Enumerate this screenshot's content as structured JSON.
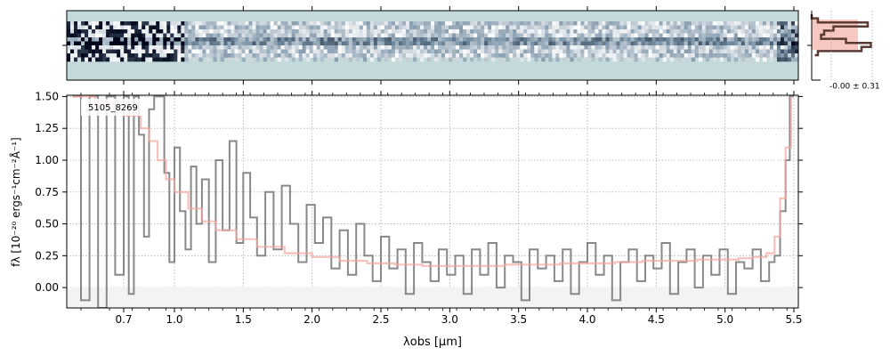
{
  "chart_data": [
    {
      "panel": "spectrum-2d",
      "type": "heatmap",
      "colormap": "bone_r-like (white → slate blue → black)",
      "background_color": "#c4dada",
      "description_of_values": "noisy 2D trace centered near row 4 of 10",
      "rows": 10
    },
    {
      "panel": "profile",
      "type": "line",
      "tick_label": "-0.00 ± 0.31",
      "profile_color": "#5a3a32",
      "band_color": "#f3b5ac",
      "profile": [
        0.0,
        0.1,
        0.9,
        0.35,
        0.2,
        0.15,
        0.55,
        0.95,
        0.8,
        0.1,
        0.05
      ]
    },
    {
      "panel": "spectrum-1d",
      "type": "line",
      "label": "5105_8269",
      "xlabel": "λobs [μm]",
      "ylabel": "fλ [10⁻²⁰ ergs⁻¹cm⁻²Å⁻¹]",
      "xtick_labels": [
        "0.7",
        "1.0",
        "1.5",
        "2.0",
        "2.5",
        "3.0",
        "3.5",
        "4.0",
        "4.5",
        "5.0",
        "5.5"
      ],
      "xticks": [
        0.7,
        1.0,
        1.5,
        2.0,
        2.5,
        3.0,
        3.5,
        4.0,
        4.5,
        5.0,
        5.5
      ],
      "ytick_labels": [
        "0.00",
        "0.25",
        "0.50",
        "0.75",
        "1.00",
        "1.25",
        "1.50"
      ],
      "yticks": [
        0.0,
        0.25,
        0.5,
        0.75,
        1.0,
        1.25,
        1.5
      ],
      "xlim": [
        0.5,
        5.52
      ],
      "ylim": [
        -0.16,
        1.51
      ],
      "grid": true,
      "data_color": "#888888",
      "model_color": "#f3a6a0",
      "series": [
        {
          "style": "steps",
          "x": [
            0.52,
            0.55,
            0.58,
            0.61,
            0.64,
            0.67,
            0.7,
            0.73,
            0.76,
            0.79,
            0.82,
            0.85,
            0.88,
            0.91,
            0.94,
            0.97,
            1.0,
            1.04,
            1.08,
            1.12,
            1.16,
            1.2,
            1.25,
            1.3,
            1.35,
            1.4,
            1.45,
            1.5,
            1.55,
            1.6,
            1.66,
            1.72,
            1.78,
            1.84,
            1.9,
            1.96,
            2.02,
            2.08,
            2.14,
            2.2,
            2.26,
            2.32,
            2.38,
            2.44,
            2.5,
            2.56,
            2.62,
            2.68,
            2.74,
            2.8,
            2.86,
            2.92,
            2.98,
            3.04,
            3.1,
            3.16,
            3.22,
            3.28,
            3.34,
            3.4,
            3.46,
            3.52,
            3.58,
            3.64,
            3.7,
            3.76,
            3.82,
            3.88,
            3.94,
            4.0,
            4.06,
            4.12,
            4.18,
            4.24,
            4.3,
            4.36,
            4.42,
            4.48,
            4.54,
            4.6,
            4.66,
            4.72,
            4.78,
            4.84,
            4.9,
            4.96,
            5.02,
            5.08,
            5.14,
            5.2,
            5.26,
            5.32,
            5.36,
            5.4,
            5.44,
            5.47,
            5.5
          ],
          "y": [
            1.5,
            -0.1,
            1.5,
            -0.16,
            1.5,
            0.1,
            1.5,
            -0.05,
            1.5,
            1.2,
            0.4,
            1.4,
            1.5,
            1.5,
            0.9,
            0.2,
            1.1,
            0.6,
            0.3,
            0.95,
            0.5,
            0.85,
            0.2,
            1.0,
            0.45,
            1.15,
            0.35,
            0.9,
            0.55,
            0.25,
            0.75,
            0.3,
            0.8,
            0.5,
            0.2,
            0.65,
            0.35,
            0.55,
            0.15,
            0.45,
            0.1,
            0.5,
            0.25,
            0.05,
            0.4,
            0.15,
            0.3,
            -0.05,
            0.35,
            0.2,
            0.05,
            0.3,
            0.1,
            0.25,
            -0.05,
            0.3,
            0.1,
            0.35,
            0.0,
            0.25,
            0.2,
            -0.1,
            0.3,
            0.15,
            0.25,
            0.05,
            0.3,
            -0.05,
            0.2,
            0.35,
            0.1,
            0.25,
            -0.1,
            0.2,
            0.3,
            0.05,
            0.25,
            0.15,
            0.35,
            -0.05,
            0.2,
            0.3,
            0.0,
            0.25,
            0.1,
            0.3,
            -0.05,
            0.2,
            0.15,
            0.3,
            0.05,
            0.2,
            0.25,
            0.6,
            1.0,
            1.5,
            1.5
          ]
        },
        {
          "style": "steps",
          "x": [
            0.52,
            0.6,
            0.7,
            0.8,
            0.85,
            0.9,
            0.95,
            1.0,
            1.1,
            1.2,
            1.3,
            1.45,
            1.6,
            1.8,
            2.0,
            2.2,
            2.4,
            2.6,
            2.8,
            3.0,
            3.2,
            3.4,
            3.6,
            3.8,
            4.0,
            4.2,
            4.4,
            4.6,
            4.8,
            5.0,
            5.1,
            5.2,
            5.3,
            5.36,
            5.4,
            5.44,
            5.48
          ],
          "y": [
            1.5,
            1.45,
            1.35,
            1.25,
            1.15,
            1.0,
            0.85,
            0.75,
            0.62,
            0.52,
            0.45,
            0.38,
            0.32,
            0.27,
            0.24,
            0.21,
            0.19,
            0.18,
            0.17,
            0.17,
            0.17,
            0.18,
            0.18,
            0.19,
            0.19,
            0.2,
            0.21,
            0.21,
            0.22,
            0.22,
            0.23,
            0.24,
            0.27,
            0.4,
            0.7,
            1.1,
            1.5
          ]
        }
      ]
    }
  ]
}
